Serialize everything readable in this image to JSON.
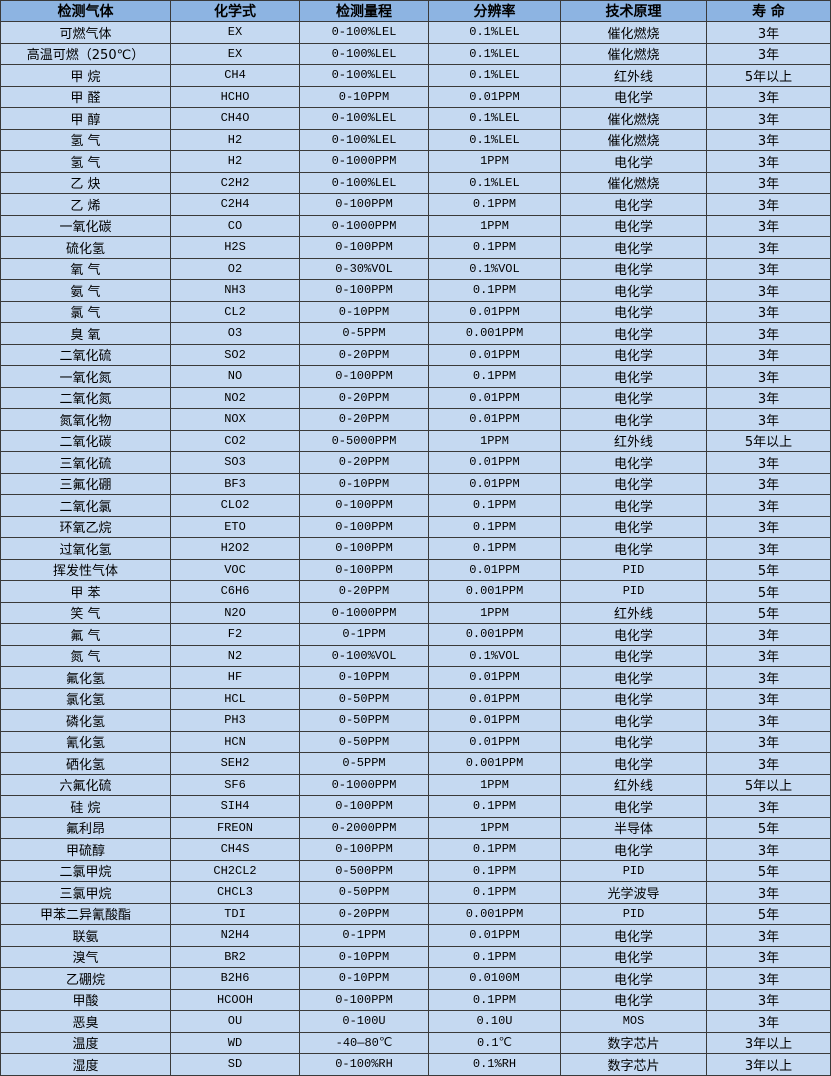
{
  "table": {
    "headers": [
      "检测气体",
      "化学式",
      "检测量程",
      "分辨率",
      "技术原理",
      "寿 命"
    ],
    "rows": [
      [
        "可燃气体",
        "EX",
        "0-100%LEL",
        "0.1%LEL",
        "催化燃烧",
        "3年"
      ],
      [
        "高温可燃（250℃）",
        "EX",
        "0-100%LEL",
        "0.1%LEL",
        "催化燃烧",
        "3年"
      ],
      [
        "甲 烷",
        "CH4",
        "0-100%LEL",
        "0.1%LEL",
        "红外线",
        "5年以上"
      ],
      [
        "甲 醛",
        "HCHO",
        "0-10PPM",
        "0.01PPM",
        "电化学",
        "3年"
      ],
      [
        "甲 醇",
        "CH4O",
        "0-100%LEL",
        "0.1%LEL",
        "催化燃烧",
        "3年"
      ],
      [
        "氢 气",
        "H2",
        "0-100%LEL",
        "0.1%LEL",
        "催化燃烧",
        "3年"
      ],
      [
        "氢 气",
        "H2",
        "0-1000PPM",
        "1PPM",
        "电化学",
        "3年"
      ],
      [
        "乙 炔",
        "C2H2",
        "0-100%LEL",
        "0.1%LEL",
        "催化燃烧",
        "3年"
      ],
      [
        "乙 烯",
        "C2H4",
        "0-100PPM",
        "0.1PPM",
        "电化学",
        "3年"
      ],
      [
        "一氧化碳",
        "CO",
        "0-1000PPM",
        "1PPM",
        "电化学",
        "3年"
      ],
      [
        "硫化氢",
        "H2S",
        "0-100PPM",
        "0.1PPM",
        "电化学",
        "3年"
      ],
      [
        "氧 气",
        "O2",
        "0-30%VOL",
        "0.1%VOL",
        "电化学",
        "3年"
      ],
      [
        "氨 气",
        "NH3",
        "0-100PPM",
        "0.1PPM",
        "电化学",
        "3年"
      ],
      [
        "氯 气",
        "CL2",
        "0-10PPM",
        "0.01PPM",
        "电化学",
        "3年"
      ],
      [
        "臭 氧",
        "O3",
        "0-5PPM",
        "0.001PPM",
        "电化学",
        "3年"
      ],
      [
        "二氧化硫",
        "SO2",
        "0-20PPM",
        "0.01PPM",
        "电化学",
        "3年"
      ],
      [
        "一氧化氮",
        "NO",
        "0-100PPM",
        "0.1PPM",
        "电化学",
        "3年"
      ],
      [
        "二氧化氮",
        "NO2",
        "0-20PPM",
        "0.01PPM",
        "电化学",
        "3年"
      ],
      [
        "氮氧化物",
        "NOX",
        "0-20PPM",
        "0.01PPM",
        "电化学",
        "3年"
      ],
      [
        "二氧化碳",
        "CO2",
        "0-5000PPM",
        "1PPM",
        "红外线",
        "5年以上"
      ],
      [
        "三氧化硫",
        "SO3",
        "0-20PPM",
        "0.01PPM",
        "电化学",
        "3年"
      ],
      [
        "三氟化硼",
        "BF3",
        "0-10PPM",
        "0.01PPM",
        "电化学",
        "3年"
      ],
      [
        "二氧化氯",
        "CLO2",
        "0-100PPM",
        "0.1PPM",
        "电化学",
        "3年"
      ],
      [
        "环氧乙烷",
        "ETO",
        "0-100PPM",
        "0.1PPM",
        "电化学",
        "3年"
      ],
      [
        "过氧化氢",
        "H2O2",
        "0-100PPM",
        "0.1PPM",
        "电化学",
        "3年"
      ],
      [
        "挥发性气体",
        "VOC",
        "0-100PPM",
        "0.01PPM",
        "PID",
        "5年"
      ],
      [
        "甲 苯",
        "C6H6",
        "0-20PPM",
        "0.001PPM",
        "PID",
        "5年"
      ],
      [
        "笑 气",
        "N2O",
        "0-1000PPM",
        "1PPM",
        "红外线",
        "5年"
      ],
      [
        "氟 气",
        "F2",
        "0-1PPM",
        "0.001PPM",
        "电化学",
        "3年"
      ],
      [
        "氮 气",
        "N2",
        "0-100%VOL",
        "0.1%VOL",
        "电化学",
        "3年"
      ],
      [
        "氟化氢",
        "HF",
        "0-10PPM",
        "0.01PPM",
        "电化学",
        "3年"
      ],
      [
        "氯化氢",
        "HCL",
        "0-50PPM",
        "0.01PPM",
        "电化学",
        "3年"
      ],
      [
        "磷化氢",
        "PH3",
        "0-50PPM",
        "0.01PPM",
        "电化学",
        "3年"
      ],
      [
        "氰化氢",
        "HCN",
        "0-50PPM",
        "0.01PPM",
        "电化学",
        "3年"
      ],
      [
        "硒化氢",
        "SEH2",
        "0-5PPM",
        "0.001PPM",
        "电化学",
        "3年"
      ],
      [
        "六氟化硫",
        "SF6",
        "0-1000PPM",
        "1PPM",
        "红外线",
        "5年以上"
      ],
      [
        "硅 烷",
        "SIH4",
        "0-100PPM",
        "0.1PPM",
        "电化学",
        "3年"
      ],
      [
        "氟利昂",
        "FREON",
        "0-2000PPM",
        "1PPM",
        "半导体",
        "5年"
      ],
      [
        "甲硫醇",
        "CH4S",
        "0-100PPM",
        "0.1PPM",
        "电化学",
        "3年"
      ],
      [
        "二氯甲烷",
        "CH2CL2",
        "0-500PPM",
        "0.1PPM",
        "PID",
        "5年"
      ],
      [
        "三氯甲烷",
        "CHCL3",
        "0-50PPM",
        "0.1PPM",
        "光学波导",
        "3年"
      ],
      [
        "甲苯二异氰酸酯",
        "TDI",
        "0-20PPM",
        "0.001PPM",
        "PID",
        "5年"
      ],
      [
        "联氨",
        "N2H4",
        "0-1PPM",
        "0.01PPM",
        "电化学",
        "3年"
      ],
      [
        "溴气",
        "BR2",
        "0-10PPM",
        "0.1PPM",
        "电化学",
        "3年"
      ],
      [
        "乙硼烷",
        "B2H6",
        "0-10PPM",
        "0.0100M",
        "电化学",
        "3年"
      ],
      [
        "甲酸",
        "HCOOH",
        "0-100PPM",
        "0.1PPM",
        "电化学",
        "3年"
      ],
      [
        "恶臭",
        "OU",
        "0-100U",
        "0.10U",
        "MOS",
        "3年"
      ],
      [
        "温度",
        "WD",
        "-40—80℃",
        "0.1℃",
        "数字芯片",
        "3年以上"
      ],
      [
        "湿度",
        "SD",
        "0-100%RH",
        "0.1%RH",
        "数字芯片",
        "3年以上"
      ]
    ]
  },
  "colors": {
    "header_bg": "#8db4e2",
    "row_bg": "#c5d9f1",
    "border": "#3a3a3a"
  }
}
